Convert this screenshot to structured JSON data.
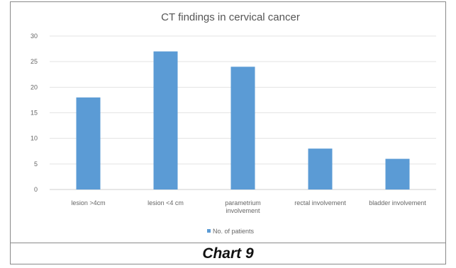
{
  "chart_data": {
    "type": "bar",
    "title": "CT findings in cervical cancer",
    "categories": [
      "lesion >4cm",
      "lesion <4 cm",
      "parametrium involvement",
      "rectal involvement",
      "bladder involvement"
    ],
    "category_lines": [
      [
        "lesion >4cm"
      ],
      [
        "lesion <4 cm"
      ],
      [
        "parametrium",
        "involvement"
      ],
      [
        "rectal involvement"
      ],
      [
        "bladder involvement"
      ]
    ],
    "series": [
      {
        "name": "No. of patients",
        "values": [
          18,
          27,
          24,
          8,
          6
        ]
      }
    ],
    "yticks": [
      0,
      5,
      10,
      15,
      20,
      25,
      30
    ],
    "ylim": [
      0,
      30
    ],
    "grid": true,
    "legend_position": "bottom",
    "colors": {
      "bar": "#5b9bd5",
      "grid": "#e3e3e3",
      "title": "#555555",
      "tick": "#666666"
    }
  },
  "caption": "Chart 9"
}
